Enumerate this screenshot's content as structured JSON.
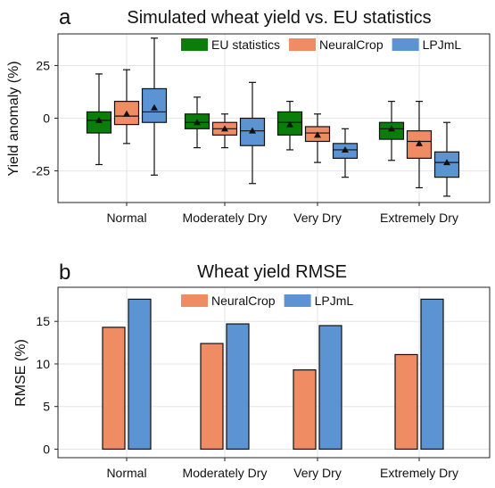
{
  "colors": {
    "EU statistics": "#0a7d0a",
    "NeuralCrop": "#f08c64",
    "LPJmL": "#5b93d3"
  },
  "chart_data": [
    {
      "letter": "a",
      "type": "box",
      "title": "Simulated wheat yield vs. EU statistics",
      "ylabel": "Yield anomaly (%)",
      "xlabel": "",
      "ylim": [
        -40,
        40
      ],
      "yticks": [
        -25,
        0,
        25
      ],
      "grid": true,
      "legend": "top-right",
      "categories": [
        "Normal",
        "Moderately Dry",
        "Very Dry",
        "Extremely Dry"
      ],
      "series": [
        {
          "name": "EU statistics",
          "boxes": [
            {
              "min": -22,
              "q1": -7,
              "median": -1,
              "q3": 3,
              "max": 21,
              "mean": -1
            },
            {
              "min": -14,
              "q1": -5,
              "median": -2,
              "q3": 2,
              "max": 10,
              "mean": -2
            },
            {
              "min": -15,
              "q1": -8,
              "median": -2,
              "q3": 3,
              "max": 8,
              "mean": -3
            },
            {
              "min": -20,
              "q1": -10,
              "median": -5,
              "q3": -2,
              "max": 8,
              "mean": -5
            }
          ]
        },
        {
          "name": "NeuralCrop",
          "boxes": [
            {
              "min": -12,
              "q1": -3,
              "median": 1,
              "q3": 8,
              "max": 23,
              "mean": 2
            },
            {
              "min": -14,
              "q1": -8,
              "median": -5,
              "q3": -2,
              "max": 2,
              "mean": -5
            },
            {
              "min": -21,
              "q1": -11,
              "median": -7,
              "q3": -4,
              "max": 2,
              "mean": -8
            },
            {
              "min": -33,
              "q1": -19,
              "median": -11,
              "q3": -6,
              "max": 8,
              "mean": -12
            }
          ]
        },
        {
          "name": "LPJmL",
          "boxes": [
            {
              "min": -27,
              "q1": -2,
              "median": 3,
              "q3": 14,
              "max": 38,
              "mean": 5
            },
            {
              "min": -31,
              "q1": -13,
              "median": -6,
              "q3": 0,
              "max": 17,
              "mean": -6
            },
            {
              "min": -28,
              "q1": -19,
              "median": -15,
              "q3": -12,
              "max": -5,
              "mean": -15
            },
            {
              "min": -37,
              "q1": -28,
              "median": -21,
              "q3": -16,
              "max": -2,
              "mean": -21
            }
          ]
        }
      ]
    },
    {
      "letter": "b",
      "type": "bar",
      "title": "Wheat yield RMSE",
      "ylabel": "RMSE (%)",
      "xlabel": "",
      "ylim": [
        -1,
        19
      ],
      "yticks": [
        0,
        5,
        10,
        15
      ],
      "grid": true,
      "legend": "top",
      "categories": [
        "Normal",
        "Moderately Dry",
        "Very Dry",
        "Extremely Dry"
      ],
      "series": [
        {
          "name": "NeuralCrop",
          "values": [
            14.3,
            12.4,
            9.3,
            11.1
          ]
        },
        {
          "name": "LPJmL",
          "values": [
            17.6,
            14.7,
            14.5,
            17.6
          ]
        }
      ]
    }
  ]
}
